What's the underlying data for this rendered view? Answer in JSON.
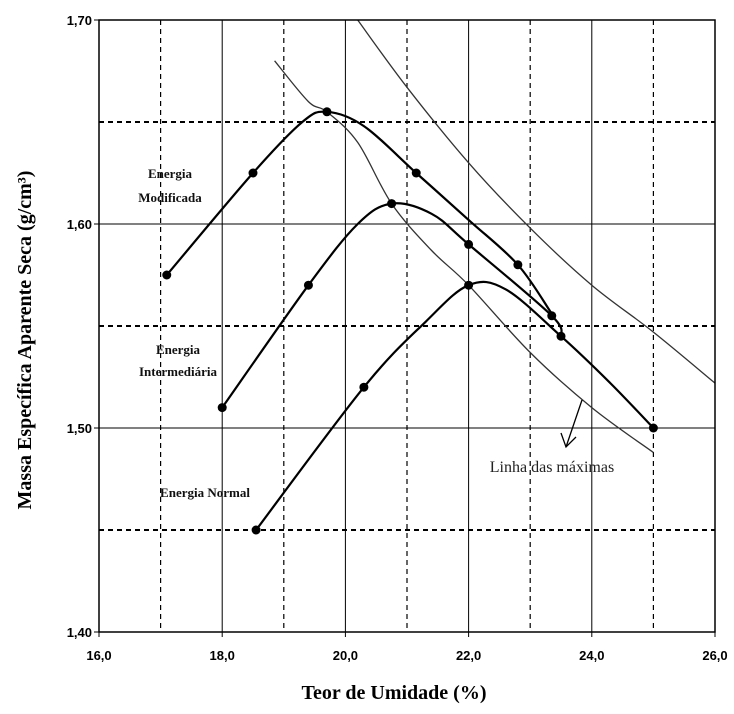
{
  "chart_data": {
    "type": "line",
    "title": "",
    "xlabel": "Teor de Umidade (%)",
    "ylabel": "Massa Específica Aparente Seca (g/cm³)",
    "xlim": [
      16.0,
      26.0
    ],
    "ylim": [
      1.4,
      1.7
    ],
    "x_ticks": [
      16.0,
      18.0,
      20.0,
      22.0,
      24.0,
      26.0
    ],
    "x_tick_labels": [
      "16,0",
      "18,0",
      "20,0",
      "22,0",
      "24,0",
      "26,0"
    ],
    "y_ticks": [
      1.4,
      1.5,
      1.6,
      1.7
    ],
    "y_tick_labels": [
      "1,40",
      "1,50",
      "1,60",
      "1,70"
    ],
    "x_dashed_gridlines": [
      17.0,
      19.0,
      21.0,
      23.0,
      25.0
    ],
    "y_dashed_gridlines": [
      1.45,
      1.55,
      1.65
    ],
    "grid": true,
    "series": [
      {
        "name": "Energia Modificada",
        "points": [
          [
            17.1,
            1.575
          ],
          [
            18.5,
            1.625
          ],
          [
            19.7,
            1.655
          ],
          [
            21.15,
            1.625
          ],
          [
            22.8,
            1.58
          ]
        ],
        "curve": [
          [
            17.1,
            1.575
          ],
          [
            18.5,
            1.625
          ],
          [
            19.3,
            1.65
          ],
          [
            19.7,
            1.655
          ],
          [
            20.3,
            1.648
          ],
          [
            21.15,
            1.625
          ],
          [
            22.0,
            1.602
          ],
          [
            22.8,
            1.58
          ],
          [
            23.35,
            1.556
          ]
        ]
      },
      {
        "name": "Energia Intermediária",
        "points": [
          [
            18.0,
            1.51
          ],
          [
            19.4,
            1.57
          ],
          [
            20.75,
            1.61
          ],
          [
            22.0,
            1.59
          ],
          [
            23.35,
            1.555
          ]
        ],
        "curve": [
          [
            18.0,
            1.51
          ],
          [
            19.4,
            1.57
          ],
          [
            20.2,
            1.6
          ],
          [
            20.75,
            1.61
          ],
          [
            21.4,
            1.605
          ],
          [
            22.0,
            1.59
          ],
          [
            23.35,
            1.555
          ],
          [
            23.5,
            1.545
          ]
        ]
      },
      {
        "name": "Energia Normal",
        "points": [
          [
            18.55,
            1.45
          ],
          [
            20.3,
            1.52
          ],
          [
            22.0,
            1.57
          ],
          [
            23.5,
            1.545
          ],
          [
            25.0,
            1.5
          ]
        ],
        "curve": [
          [
            18.55,
            1.45
          ],
          [
            20.3,
            1.52
          ],
          [
            21.3,
            1.552
          ],
          [
            22.0,
            1.57
          ],
          [
            22.6,
            1.568
          ],
          [
            23.5,
            1.545
          ],
          [
            24.3,
            1.522
          ],
          [
            25.0,
            1.5
          ]
        ]
      }
    ],
    "extra_lines": [
      {
        "name": "Linha das máximas",
        "curve": [
          [
            18.85,
            1.68
          ],
          [
            19.4,
            1.66
          ],
          [
            19.7,
            1.655
          ],
          [
            20.2,
            1.64
          ],
          [
            20.75,
            1.61
          ],
          [
            21.4,
            1.587
          ],
          [
            22.0,
            1.57
          ],
          [
            23.0,
            1.537
          ],
          [
            24.0,
            1.51
          ],
          [
            25.0,
            1.488
          ]
        ]
      },
      {
        "name": "",
        "curve": [
          [
            20.2,
            1.7
          ],
          [
            21.0,
            1.667
          ],
          [
            22.0,
            1.63
          ],
          [
            23.0,
            1.598
          ],
          [
            24.0,
            1.57
          ],
          [
            25.0,
            1.547
          ],
          [
            26.0,
            1.522
          ]
        ]
      }
    ],
    "annotations": {
      "modificada_line1": "Energia",
      "modificada_line2": "Modificada",
      "intermediaria_line1": "Energia",
      "intermediaria_line2": "Intermediária",
      "normal": "Energia Normal",
      "linha_maximas": "Linha das máximas"
    }
  }
}
